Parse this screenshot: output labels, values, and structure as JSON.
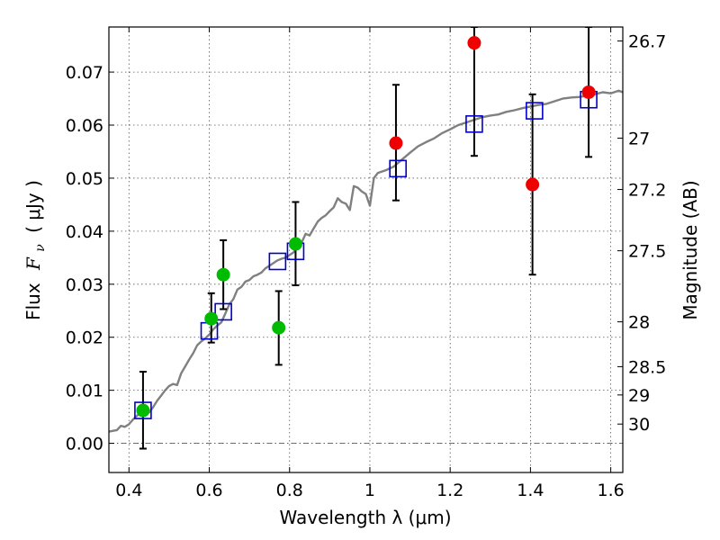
{
  "chart_data": {
    "type": "scatter",
    "xlabel": "Wavelength  λ (μm)",
    "ylabel_parts": [
      "Flux",
      "F",
      "ν",
      "( μJy )"
    ],
    "y2label": "Magnitude (AB)",
    "xlim": [
      0.35,
      1.63
    ],
    "ylim": [
      -0.0055,
      0.0785
    ],
    "xticks": [
      0.4,
      0.6,
      0.8,
      1.0,
      1.2,
      1.4,
      1.6
    ],
    "xtick_labels": [
      "0.4",
      "0.6",
      "0.8",
      "1",
      "1.2",
      "1.4",
      "1.6"
    ],
    "yticks": [
      0.0,
      0.01,
      0.02,
      0.03,
      0.04,
      0.05,
      0.06,
      0.07
    ],
    "ytick_labels": [
      "0.00",
      "0.01",
      "0.02",
      "0.03",
      "0.04",
      "0.05",
      "0.06",
      "0.07"
    ],
    "mag_ticks": [
      26.7,
      27.0,
      27.2,
      27.5,
      28.0,
      28.5,
      29.0,
      30.0
    ],
    "mag_tick_labels": [
      "26.7",
      "27",
      "27.2",
      "27.5",
      "28",
      "28.5",
      "29",
      "30"
    ],
    "grid": true,
    "zero_line": true,
    "colors": {
      "model": "#808080",
      "green": "#00bb00",
      "red": "#ee0000",
      "square": "#0000cc",
      "errorbar": "#000000"
    },
    "model_spectrum": {
      "x": [
        0.35,
        0.37,
        0.38,
        0.39,
        0.4,
        0.41,
        0.42,
        0.43,
        0.44,
        0.45,
        0.46,
        0.47,
        0.48,
        0.49,
        0.5,
        0.51,
        0.52,
        0.53,
        0.54,
        0.55,
        0.56,
        0.57,
        0.58,
        0.59,
        0.6,
        0.61,
        0.62,
        0.63,
        0.64,
        0.65,
        0.66,
        0.67,
        0.68,
        0.69,
        0.7,
        0.71,
        0.72,
        0.73,
        0.74,
        0.75,
        0.76,
        0.77,
        0.78,
        0.79,
        0.8,
        0.81,
        0.82,
        0.83,
        0.84,
        0.85,
        0.86,
        0.87,
        0.88,
        0.89,
        0.9,
        0.91,
        0.92,
        0.93,
        0.94,
        0.95,
        0.96,
        0.97,
        0.98,
        0.99,
        1.0,
        1.01,
        1.02,
        1.04,
        1.06,
        1.08,
        1.1,
        1.12,
        1.14,
        1.16,
        1.18,
        1.2,
        1.22,
        1.24,
        1.26,
        1.28,
        1.3,
        1.32,
        1.34,
        1.36,
        1.38,
        1.4,
        1.42,
        1.44,
        1.46,
        1.48,
        1.5,
        1.52,
        1.54,
        1.56,
        1.58,
        1.6,
        1.62,
        1.63
      ],
      "y": [
        0.0022,
        0.0025,
        0.0033,
        0.0031,
        0.0036,
        0.0045,
        0.0052,
        0.0058,
        0.0062,
        0.0058,
        0.0068,
        0.008,
        0.009,
        0.01,
        0.0108,
        0.0112,
        0.011,
        0.0132,
        0.0145,
        0.0158,
        0.017,
        0.0185,
        0.0192,
        0.0198,
        0.0205,
        0.0215,
        0.0222,
        0.0228,
        0.0245,
        0.0262,
        0.0272,
        0.029,
        0.0295,
        0.0305,
        0.0308,
        0.0315,
        0.0318,
        0.0322,
        0.033,
        0.0335,
        0.034,
        0.0345,
        0.0348,
        0.035,
        0.0355,
        0.036,
        0.0372,
        0.0378,
        0.0395,
        0.0392,
        0.0405,
        0.0418,
        0.0425,
        0.043,
        0.0438,
        0.0445,
        0.0462,
        0.0455,
        0.0452,
        0.044,
        0.0485,
        0.0482,
        0.0475,
        0.047,
        0.0448,
        0.05,
        0.051,
        0.0515,
        0.0522,
        0.0535,
        0.0548,
        0.056,
        0.0568,
        0.0575,
        0.0585,
        0.0592,
        0.06,
        0.0605,
        0.061,
        0.0615,
        0.0618,
        0.062,
        0.0625,
        0.0628,
        0.0632,
        0.0635,
        0.0638,
        0.064,
        0.0645,
        0.065,
        0.0652,
        0.0653,
        0.0655,
        0.0658,
        0.0662,
        0.066,
        0.0665,
        0.0662
      ]
    },
    "green_points": [
      {
        "x": 0.435,
        "y": 0.0062,
        "ylo": -0.001,
        "yhi": 0.0135
      },
      {
        "x": 0.605,
        "y": 0.0235,
        "ylo": 0.019,
        "yhi": 0.0283
      },
      {
        "x": 0.635,
        "y": 0.0318,
        "ylo": 0.0253,
        "yhi": 0.0383
      },
      {
        "x": 0.773,
        "y": 0.0218,
        "ylo": 0.0148,
        "yhi": 0.0287
      },
      {
        "x": 0.815,
        "y": 0.0376,
        "ylo": 0.0298,
        "yhi": 0.0455
      }
    ],
    "red_points": [
      {
        "x": 1.065,
        "y": 0.0566,
        "ylo": 0.0458,
        "yhi": 0.0676
      },
      {
        "x": 1.26,
        "y": 0.0755,
        "ylo": 0.0542,
        "yhi": 0.0785
      },
      {
        "x": 1.405,
        "y": 0.0488,
        "ylo": 0.0318,
        "yhi": 0.0658
      },
      {
        "x": 1.545,
        "y": 0.0662,
        "ylo": 0.054,
        "yhi": 0.0785
      }
    ],
    "model_squares": [
      {
        "x": 0.435,
        "y": 0.0062
      },
      {
        "x": 0.6,
        "y": 0.0212
      },
      {
        "x": 0.635,
        "y": 0.0248
      },
      {
        "x": 0.77,
        "y": 0.0343
      },
      {
        "x": 0.815,
        "y": 0.0362
      },
      {
        "x": 1.07,
        "y": 0.0518
      },
      {
        "x": 1.26,
        "y": 0.0602
      },
      {
        "x": 1.41,
        "y": 0.0627
      },
      {
        "x": 1.545,
        "y": 0.0648
      }
    ]
  }
}
